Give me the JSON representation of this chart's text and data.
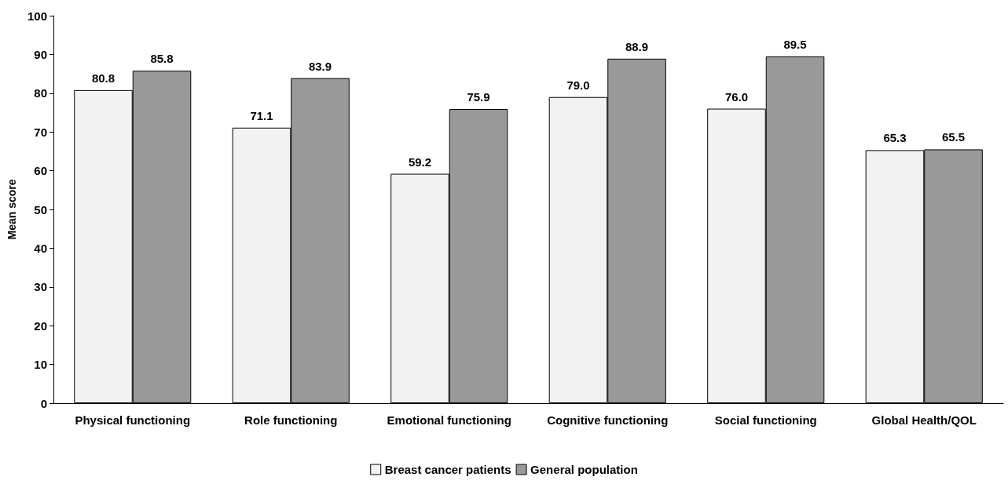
{
  "chart_data": {
    "type": "bar",
    "ylabel": "Mean score",
    "categories": [
      "Physical functioning",
      "Role functioning",
      "Emotional functioning",
      "Cognitive functioning",
      "Social functioning",
      "Global Health/QOL"
    ],
    "series": [
      {
        "name": "Breast cancer patients",
        "color": "#f2f2f2",
        "values": [
          80.8,
          71.1,
          59.2,
          79.0,
          76.0,
          65.3
        ],
        "value_labels": [
          "80.8",
          "71.1",
          "59.2",
          "79.0",
          "76.0",
          "65.3"
        ]
      },
      {
        "name": "General population",
        "color": "#999999",
        "values": [
          85.8,
          83.9,
          75.9,
          88.9,
          89.5,
          65.5
        ],
        "value_labels": [
          "85.8",
          "83.9",
          "75.9",
          "88.9",
          "89.5",
          "65.5"
        ]
      }
    ],
    "ylim": [
      0,
      100
    ],
    "yticks": [
      0,
      10,
      20,
      30,
      40,
      50,
      60,
      70,
      80,
      90,
      100
    ],
    "grid": false,
    "legend": "bottom"
  }
}
